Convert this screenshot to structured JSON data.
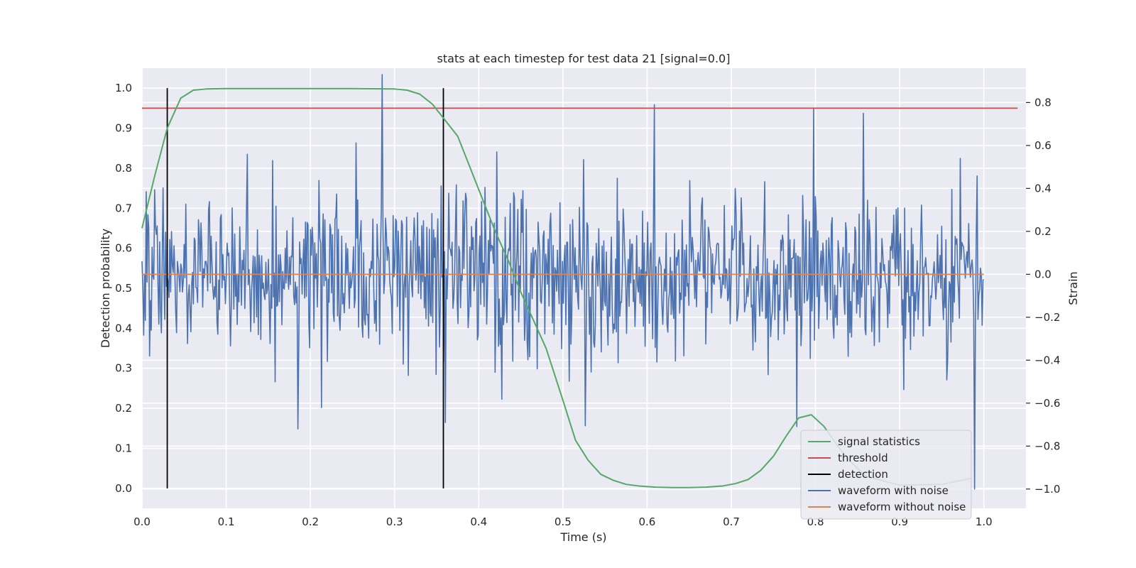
{
  "chart_data": {
    "type": "line",
    "title": "stats at each timestep for test data 21 [signal=0.0]",
    "xlabel": "Time (s)",
    "ylabel": "Detection probability",
    "ylabel_right": "Strain",
    "xlim": [
      0.0,
      1.05
    ],
    "ylim": [
      -0.05,
      1.05
    ],
    "ylim_right": [
      -1.09,
      0.96
    ],
    "x_ticks": [
      "0.0",
      "0.1",
      "0.2",
      "0.3",
      "0.4",
      "0.5",
      "0.6",
      "0.7",
      "0.8",
      "0.9",
      "1.0"
    ],
    "y_ticks": [
      "0.0",
      "0.1",
      "0.2",
      "0.3",
      "0.4",
      "0.5",
      "0.6",
      "0.7",
      "0.8",
      "0.9",
      "1.0"
    ],
    "y_ticks_right": [
      "−1.0",
      "−0.8",
      "−0.6",
      "−0.4",
      "−0.2",
      "0.0",
      "0.2",
      "0.4",
      "0.6",
      "0.8"
    ],
    "grid": true,
    "legend_position": "lower right",
    "series": [
      {
        "name": "signal statistics",
        "color": "#55a868",
        "axis": "left",
        "x": [
          0.0,
          0.015,
          0.03,
          0.046,
          0.061,
          0.076,
          0.1,
          0.15,
          0.2,
          0.25,
          0.3,
          0.315,
          0.33,
          0.345,
          0.36,
          0.375,
          0.39,
          0.405,
          0.42,
          0.435,
          0.45,
          0.465,
          0.48,
          0.5,
          0.515,
          0.53,
          0.545,
          0.56,
          0.575,
          0.59,
          0.61,
          0.63,
          0.65,
          0.67,
          0.69,
          0.705,
          0.72,
          0.735,
          0.75,
          0.765,
          0.78,
          0.795,
          0.81,
          0.825,
          0.84,
          0.86,
          0.9,
          0.95,
          0.985
        ],
        "y": [
          0.65,
          0.78,
          0.9,
          0.975,
          0.995,
          0.998,
          0.999,
          0.999,
          0.999,
          0.999,
          0.998,
          0.995,
          0.985,
          0.96,
          0.92,
          0.88,
          0.8,
          0.72,
          0.64,
          0.57,
          0.49,
          0.42,
          0.35,
          0.22,
          0.12,
          0.07,
          0.035,
          0.02,
          0.01,
          0.006,
          0.003,
          0.002,
          0.002,
          0.003,
          0.006,
          0.012,
          0.022,
          0.045,
          0.08,
          0.13,
          0.176,
          0.184,
          0.155,
          0.11,
          0.07,
          0.03,
          0.008,
          0.01,
          0.025
        ]
      },
      {
        "name": "threshold",
        "color": "#c44e52",
        "axis": "left",
        "x": [
          0.0,
          1.04
        ],
        "y": [
          0.95,
          0.95
        ]
      },
      {
        "name": "detection",
        "color": "#000000",
        "axis": "left",
        "type": "vlines",
        "x": [
          0.03,
          0.358
        ],
        "y_range": [
          0.0,
          1.0
        ]
      },
      {
        "name": "waveform with noise",
        "color": "#4c72b0",
        "axis": "right",
        "x_range": [
          0.0,
          1.0
        ],
        "n_points": 1000,
        "noise_std": 0.19,
        "spikes": [
          {
            "x": 0.285,
            "y": 0.93
          },
          {
            "x": 0.609,
            "y": 0.79
          },
          {
            "x": 0.798,
            "y": 0.77
          },
          {
            "x": 0.857,
            "y": 0.75
          },
          {
            "x": 0.989,
            "y": -1.0
          },
          {
            "x": 0.36,
            "y": -0.69
          },
          {
            "x": 0.185,
            "y": -0.72
          }
        ]
      },
      {
        "name": "waveform without noise",
        "color": "#dd8452",
        "axis": "right",
        "x": [
          0.0,
          1.0
        ],
        "y": [
          0.0,
          0.0
        ]
      }
    ]
  }
}
